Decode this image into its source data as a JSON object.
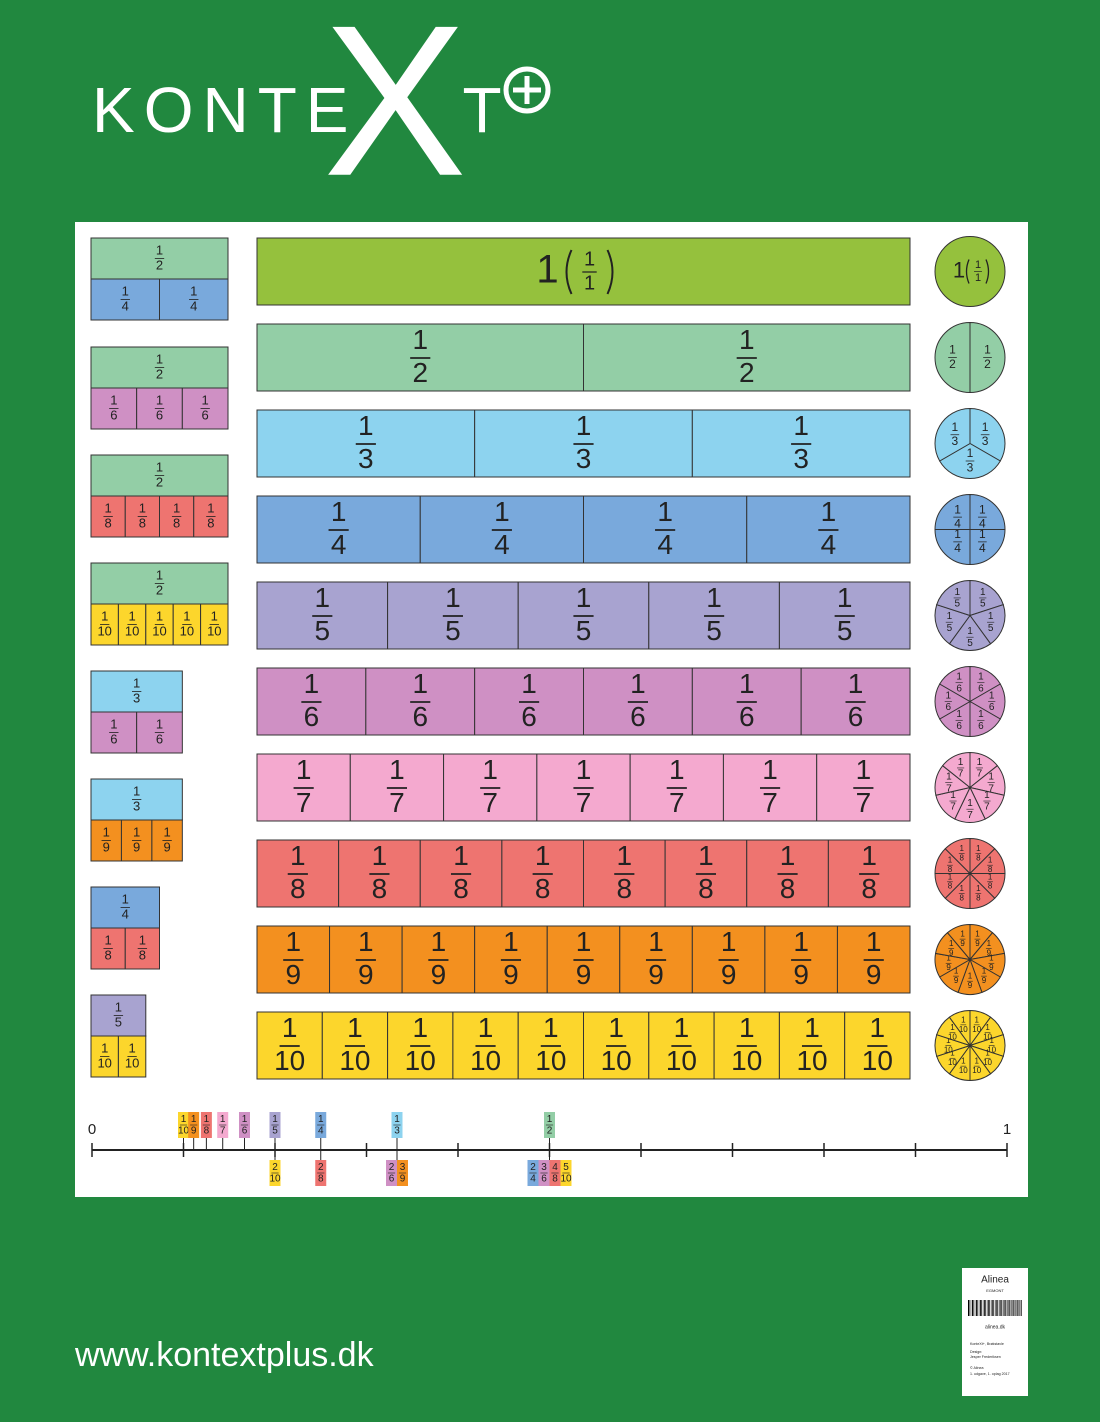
{
  "logo": {
    "start": "KONTE",
    "cross": "X",
    "end": "T"
  },
  "fraction_bars": {
    "whole": "1",
    "rows": [
      {
        "numerator": 1,
        "denominator": 1,
        "count": 1,
        "color": "#95c13d"
      },
      {
        "numerator": 1,
        "denominator": 2,
        "count": 2,
        "color": "#93cea6"
      },
      {
        "numerator": 1,
        "denominator": 3,
        "count": 3,
        "color": "#8dd3ef"
      },
      {
        "numerator": 1,
        "denominator": 4,
        "count": 4,
        "color": "#79a9dc"
      },
      {
        "numerator": 1,
        "denominator": 5,
        "count": 5,
        "color": "#a8a3d0"
      },
      {
        "numerator": 1,
        "denominator": 6,
        "count": 6,
        "color": "#cf90c4"
      },
      {
        "numerator": 1,
        "denominator": 7,
        "count": 7,
        "color": "#f4a9cf"
      },
      {
        "numerator": 1,
        "denominator": 8,
        "count": 8,
        "color": "#ee7470"
      },
      {
        "numerator": 1,
        "denominator": 9,
        "count": 9,
        "color": "#f3901f"
      },
      {
        "numerator": 1,
        "denominator": 10,
        "count": 10,
        "color": "#fcd62c"
      }
    ]
  },
  "equivalences": [
    {
      "top": {
        "numerator": 1,
        "denominator": 2
      },
      "bottom": {
        "numerator": 1,
        "denominator": 4
      },
      "count": 2
    },
    {
      "top": {
        "numerator": 1,
        "denominator": 2
      },
      "bottom": {
        "numerator": 1,
        "denominator": 6
      },
      "count": 3
    },
    {
      "top": {
        "numerator": 1,
        "denominator": 2
      },
      "bottom": {
        "numerator": 1,
        "denominator": 8
      },
      "count": 4
    },
    {
      "top": {
        "numerator": 1,
        "denominator": 2
      },
      "bottom": {
        "numerator": 1,
        "denominator": 10
      },
      "count": 5
    },
    {
      "top": {
        "numerator": 1,
        "denominator": 3
      },
      "bottom": {
        "numerator": 1,
        "denominator": 6
      },
      "count": 2
    },
    {
      "top": {
        "numerator": 1,
        "denominator": 3
      },
      "bottom": {
        "numerator": 1,
        "denominator": 9
      },
      "count": 3
    },
    {
      "top": {
        "numerator": 1,
        "denominator": 4
      },
      "bottom": {
        "numerator": 1,
        "denominator": 8
      },
      "count": 2
    },
    {
      "top": {
        "numerator": 1,
        "denominator": 5
      },
      "bottom": {
        "numerator": 1,
        "denominator": 10
      },
      "count": 2
    }
  ],
  "number_line": {
    "min": 0,
    "max": 1,
    "ticks": [
      0,
      0.1,
      0.2,
      0.3,
      0.4,
      0.5,
      0.6,
      0.7,
      0.8,
      0.9,
      1
    ],
    "labels": [
      0,
      1
    ],
    "above": [
      {
        "numerator": 1,
        "denominator": 10
      },
      {
        "numerator": 1,
        "denominator": 9
      },
      {
        "numerator": 1,
        "denominator": 8
      },
      {
        "numerator": 1,
        "denominator": 7
      },
      {
        "numerator": 1,
        "denominator": 6
      },
      {
        "numerator": 1,
        "denominator": 5
      },
      {
        "numerator": 1,
        "denominator": 4
      },
      {
        "numerator": 1,
        "denominator": 3
      },
      {
        "numerator": 1,
        "denominator": 2
      }
    ],
    "below": [
      {
        "numerator": 2,
        "denominator": 10
      },
      {
        "numerator": 2,
        "denominator": 8
      },
      {
        "numerator": 2,
        "denominator": 6
      },
      {
        "numerator": 3,
        "denominator": 9
      },
      {
        "numerator": 2,
        "denominator": 4
      },
      {
        "numerator": 3,
        "denominator": 6
      },
      {
        "numerator": 4,
        "denominator": 8
      },
      {
        "numerator": 5,
        "denominator": 10
      }
    ]
  },
  "footer": {
    "url": "www.kontextplus.dk"
  },
  "imprint": {
    "publisher": "Alinea",
    "group": "EGMONT",
    "site": "alinea.dk",
    "product": "KonteXt+, Brøkstavle",
    "design_label": "Design:",
    "designer": "Jesper Frederiksen",
    "copyright": "© Alinea",
    "edition": "1. udgave, 1. oplag 2017"
  }
}
